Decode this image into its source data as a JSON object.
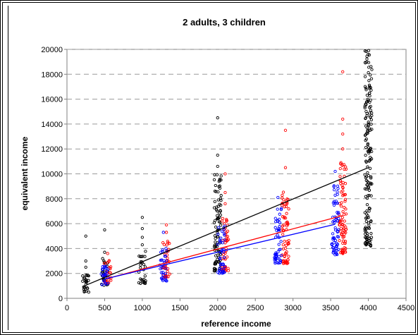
{
  "chart_data": {
    "type": "scatter",
    "title": "2 adults, 3 children",
    "xlabel": "reference income",
    "ylabel": "equivalent income",
    "xlim": [
      0,
      4500
    ],
    "ylim": [
      0,
      20000
    ],
    "xticks": [
      0,
      500,
      1000,
      1500,
      2000,
      2500,
      3000,
      3500,
      4000,
      4500
    ],
    "yticks": [
      0,
      2000,
      4000,
      6000,
      8000,
      10000,
      12000,
      14000,
      16000,
      18000,
      20000
    ],
    "grid": "horizontal",
    "legend": "none",
    "colors": {
      "black": "#000000",
      "red": "#ff0000",
      "blue": "#0000ff"
    },
    "series": [
      {
        "color": "#000000",
        "columns": [
          {
            "x": 250,
            "ymin": 500,
            "ymax": 2000,
            "outliers": [
              2500,
              3000,
              5000
            ]
          },
          {
            "x": 500,
            "ymin": 1000,
            "ymax": 3200,
            "outliers": [
              3700,
              5500
            ]
          },
          {
            "x": 1000,
            "ymin": 1200,
            "ymax": 3800,
            "outliers": [
              4300,
              4900,
              5600,
              6500
            ]
          },
          {
            "x": 2000,
            "ymin": 2200,
            "ymax": 10000,
            "outliers": [
              10600,
              11500,
              14500
            ]
          },
          {
            "x": 4000,
            "ymin": 4200,
            "ymax": 20000,
            "outliers": []
          }
        ],
        "trend": [
          [
            250,
            1050
          ],
          [
            4000,
            10500
          ]
        ]
      },
      {
        "color": "#ff0000",
        "columns": [
          {
            "x": 540,
            "ymin": 1200,
            "ymax": 3300,
            "outliers": [
              3600
            ]
          },
          {
            "x": 1320,
            "ymin": 1700,
            "ymax": 4800,
            "outliers": [
              5300,
              5900
            ]
          },
          {
            "x": 2100,
            "ymin": 2200,
            "ymax": 6600,
            "outliers": [
              7600,
              8500,
              10000
            ]
          },
          {
            "x": 2900,
            "ymin": 2800,
            "ymax": 8700,
            "outliers": [
              10500,
              13500
            ]
          },
          {
            "x": 3660,
            "ymin": 3600,
            "ymax": 11000,
            "outliers": [
              12000,
              13200,
              14400,
              18200
            ]
          }
        ],
        "trend": [
          [
            540,
            1600
          ],
          [
            3660,
            6650
          ]
        ]
      },
      {
        "color": "#0000ff",
        "columns": [
          {
            "x": 500,
            "ymin": 1100,
            "ymax": 2800,
            "outliers": []
          },
          {
            "x": 1280,
            "ymin": 1400,
            "ymax": 4200,
            "outliers": [
              5300
            ]
          },
          {
            "x": 2050,
            "ymin": 2000,
            "ymax": 5800,
            "outliers": []
          },
          {
            "x": 2800,
            "ymin": 2800,
            "ymax": 7400,
            "outliers": [
              8100
            ]
          },
          {
            "x": 3560,
            "ymin": 3500,
            "ymax": 9200,
            "outliers": [
              10200
            ]
          }
        ],
        "trend": [
          [
            500,
            1550
          ],
          [
            3560,
            5950
          ]
        ]
      }
    ]
  }
}
